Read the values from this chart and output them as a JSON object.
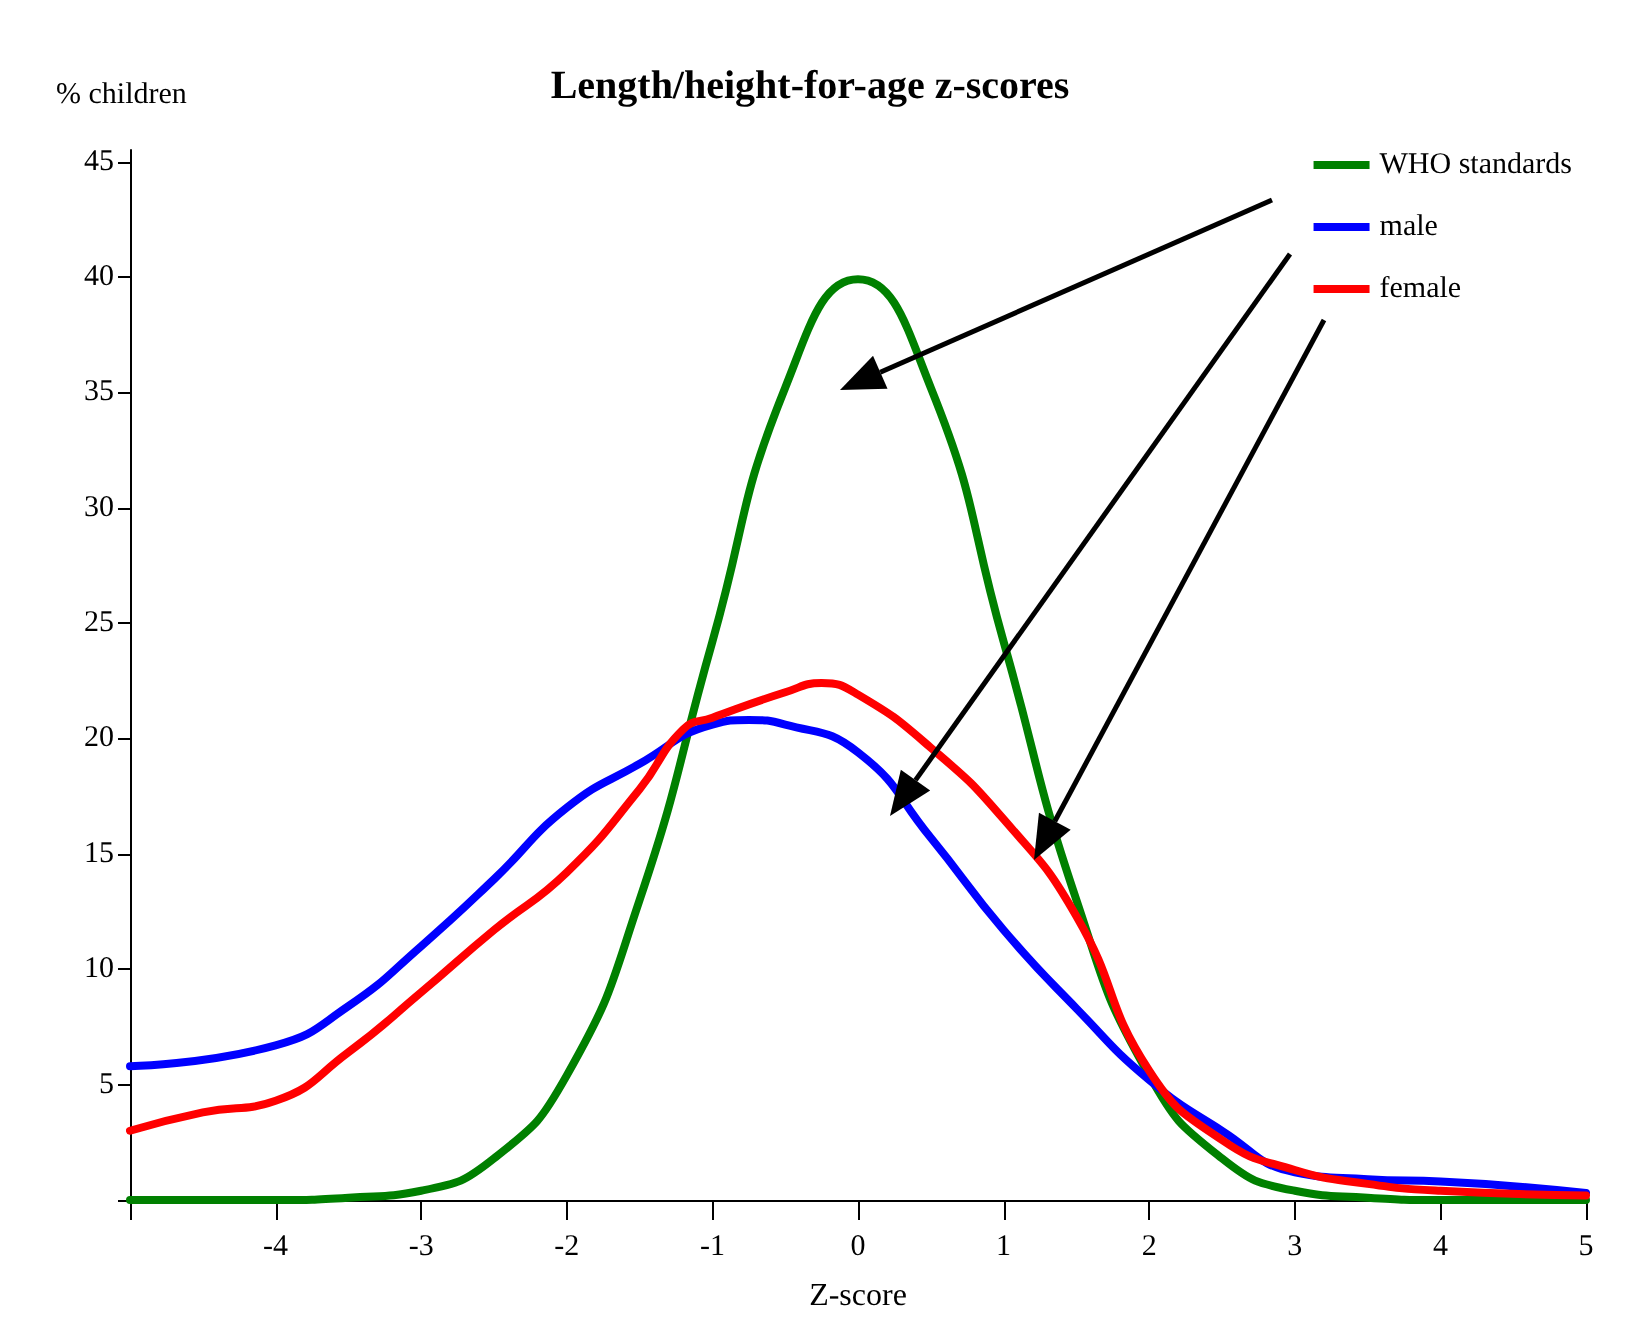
{
  "chart_data": {
    "type": "line",
    "title": "Length/height-for-age z-scores",
    "xlabel": "Z-score",
    "ylabel": "% children",
    "xlim": [
      -5,
      5
    ],
    "ylim": [
      0,
      45.5
    ],
    "xticks": [
      {
        "value": -5,
        "label": null
      },
      -4,
      -3,
      -2,
      -1,
      0,
      1,
      2,
      3,
      4,
      5
    ],
    "yticks": [
      {
        "value": 0,
        "label": null
      },
      5,
      10,
      15,
      20,
      25,
      30,
      35,
      40,
      45
    ],
    "grid": false,
    "legend": "top right",
    "marker": "none",
    "line_style": "solid",
    "series": [
      {
        "name": "WHO standards",
        "color": "#008000",
        "x": [
          -5,
          -4.5,
          -4,
          -3.5,
          -3,
          -2.5,
          -2,
          -1.5,
          -1,
          -0.5,
          0,
          0.5,
          1,
          1.5,
          2,
          2.5,
          3,
          3.5,
          4,
          4.5,
          5
        ],
        "values": [
          0,
          0,
          0,
          0.1,
          0.4,
          1.8,
          5.4,
          13,
          24.2,
          35.2,
          39.9,
          35.2,
          24.2,
          13,
          5.4,
          1.8,
          0.4,
          0.1,
          0,
          0,
          0
        ]
      },
      {
        "name": "male",
        "color": "#0000ff",
        "x": [
          -5,
          -4,
          -3.5,
          -3,
          -2.5,
          -2,
          -1.5,
          -1,
          -0.75,
          -0.5,
          0,
          0.5,
          1,
          1.5,
          2,
          2.5,
          3,
          3.5,
          4,
          4.5,
          5
        ],
        "values": [
          5.8,
          6.7,
          8.4,
          11,
          13.9,
          17,
          18.9,
          20.6,
          20.8,
          20.6,
          19.4,
          15.7,
          11.7,
          8.3,
          5.2,
          3,
          1.2,
          0.9,
          0.8,
          0.6,
          0.3
        ]
      },
      {
        "name": "female",
        "color": "#ff0000",
        "x": [
          -5,
          -4.5,
          -4,
          -3.5,
          -3,
          -2.5,
          -2,
          -1.5,
          -1.2,
          -1,
          -0.5,
          -0.25,
          0,
          0.5,
          1,
          1.5,
          2,
          2.5,
          3,
          3.5,
          4,
          5
        ],
        "values": [
          3,
          3.8,
          4.3,
          6.4,
          9,
          11.7,
          14.2,
          17.8,
          20.4,
          20.9,
          22,
          22.4,
          21.9,
          19.6,
          16.5,
          12.3,
          5.6,
          2.6,
          1.3,
          0.7,
          0.4,
          0.2
        ]
      }
    ]
  }
}
